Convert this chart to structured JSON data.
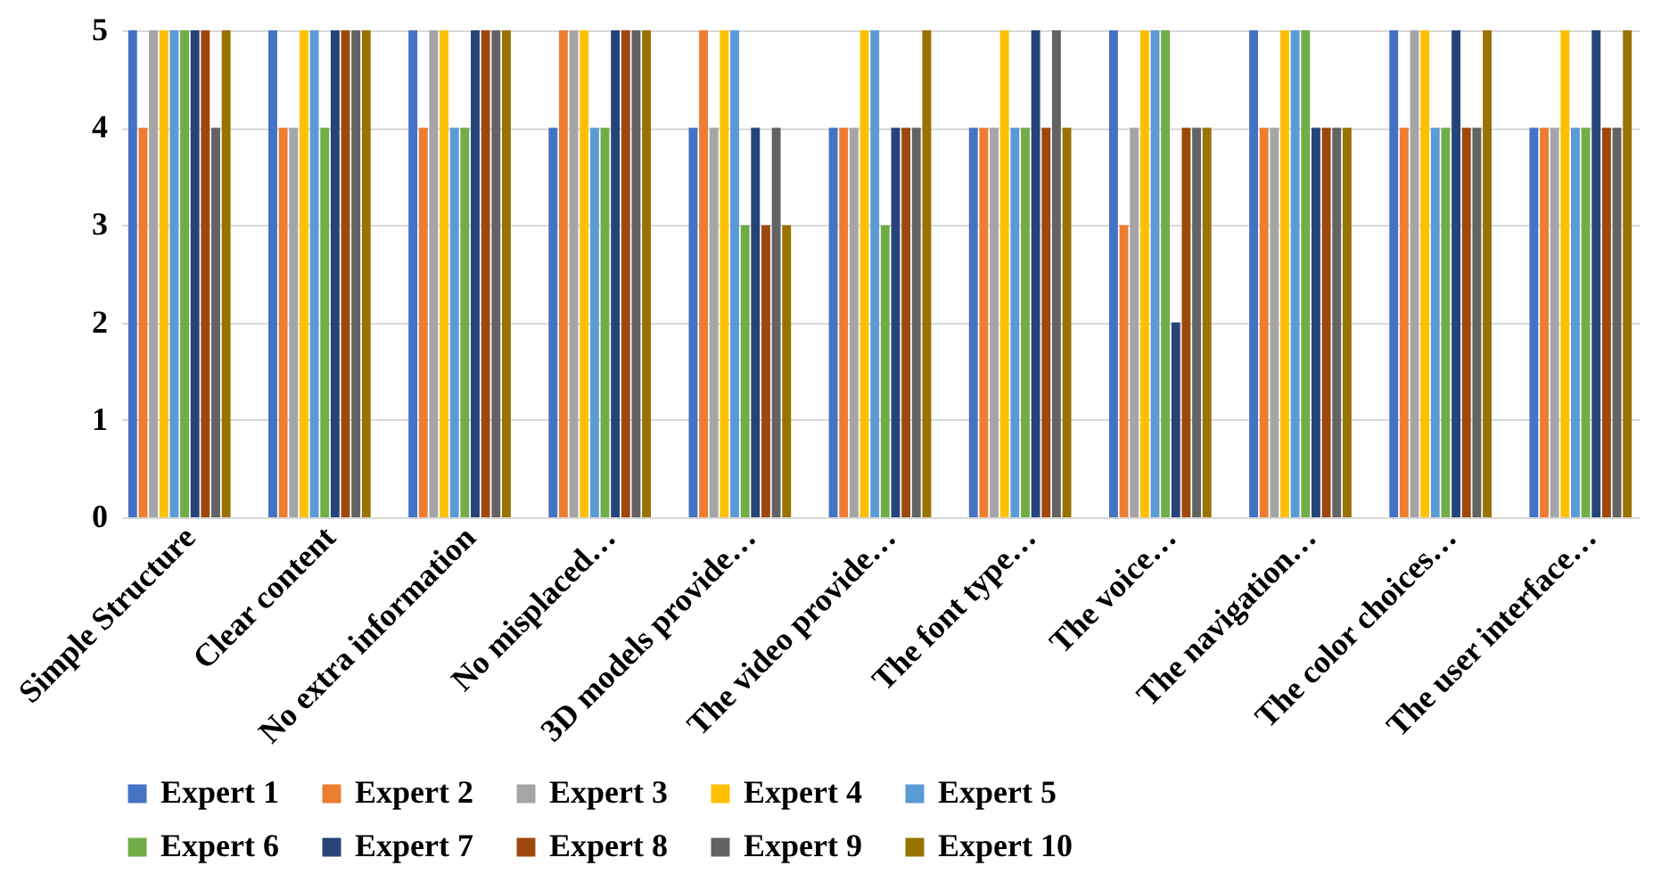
{
  "chart_data": {
    "type": "bar",
    "categories": [
      "Simple Structure",
      "Clear content",
      "No extra information",
      "No misplaced…",
      "3D models provide…",
      "The video provide…",
      "The font type…",
      "The voice…",
      "The navigation…",
      "The color choices…",
      "The user interface…"
    ],
    "series": [
      {
        "name": "Expert 1",
        "color": "#4472c4",
        "values": [
          5,
          5,
          5,
          4,
          4,
          4,
          4,
          5,
          5,
          5,
          4
        ]
      },
      {
        "name": "Expert 2",
        "color": "#ed7d31",
        "values": [
          4,
          4,
          4,
          5,
          5,
          4,
          4,
          3,
          4,
          4,
          4
        ]
      },
      {
        "name": "Expert 3",
        "color": "#a5a5a5",
        "values": [
          5,
          4,
          5,
          5,
          4,
          4,
          4,
          4,
          4,
          5,
          4
        ]
      },
      {
        "name": "Expert 4",
        "color": "#ffc000",
        "values": [
          5,
          5,
          5,
          5,
          5,
          5,
          5,
          5,
          5,
          5,
          5
        ]
      },
      {
        "name": "Expert 5",
        "color": "#5b9bd5",
        "values": [
          5,
          5,
          4,
          4,
          5,
          5,
          4,
          5,
          5,
          4,
          4
        ]
      },
      {
        "name": "Expert 6",
        "color": "#70ad47",
        "values": [
          5,
          4,
          4,
          4,
          3,
          3,
          4,
          5,
          5,
          4,
          4
        ]
      },
      {
        "name": "Expert 7",
        "color": "#264478",
        "values": [
          5,
          5,
          5,
          5,
          4,
          4,
          5,
          2,
          4,
          5,
          5
        ]
      },
      {
        "name": "Expert 8",
        "color": "#9e480e",
        "values": [
          5,
          5,
          5,
          5,
          3,
          4,
          4,
          4,
          4,
          4,
          4
        ]
      },
      {
        "name": "Expert 9",
        "color": "#636363",
        "values": [
          4,
          5,
          5,
          5,
          4,
          4,
          5,
          4,
          4,
          4,
          4
        ]
      },
      {
        "name": "Expert 10",
        "color": "#997300",
        "values": [
          5,
          5,
          5,
          5,
          3,
          5,
          4,
          4,
          4,
          5,
          5
        ]
      }
    ],
    "ylim": [
      0,
      5
    ],
    "yticks": [
      0,
      1,
      2,
      3,
      4,
      5
    ],
    "grid": "y",
    "legend": "bottom"
  }
}
